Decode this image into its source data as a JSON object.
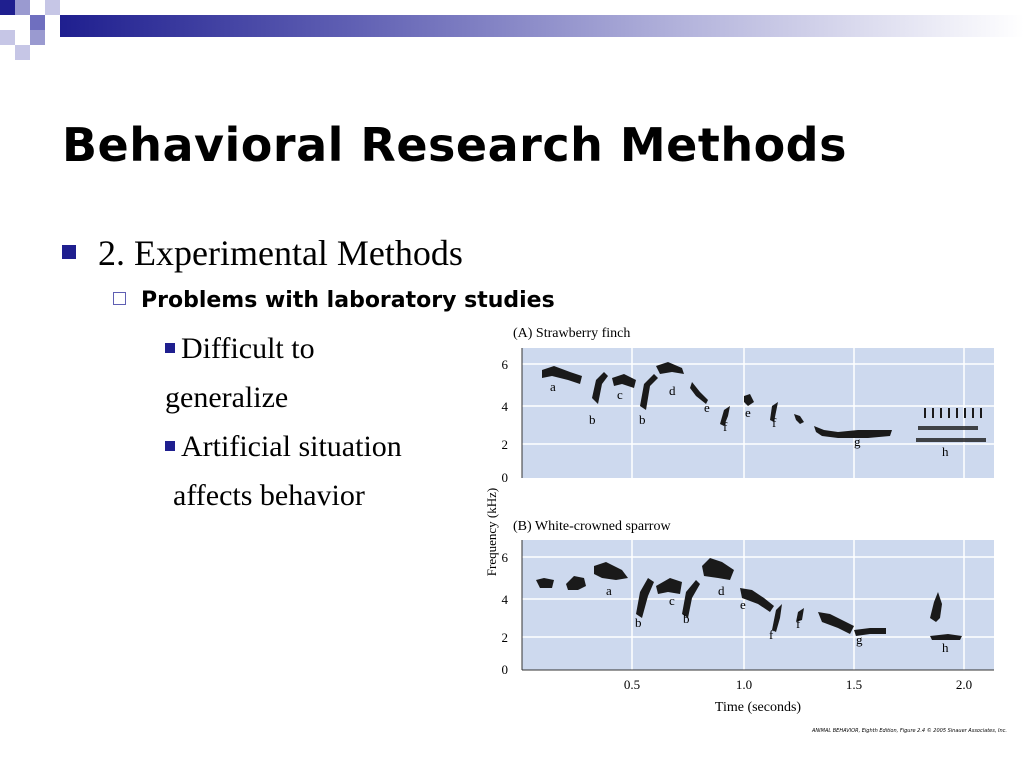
{
  "slide": {
    "title": "Behavioral Research Methods",
    "bullet1": "2. Experimental Methods",
    "subbullet": "Problems with laboratory studies",
    "point1_line1": "Difficult to",
    "point1_line2": "generalize",
    "point2_line1": "Artificial situation",
    "point2_line2": "affects behavior"
  },
  "figure": {
    "panel_a_title": "(A)  Strawberry finch",
    "panel_b_title": "(B)  White-crowned sparrow",
    "y_axis_label": "Frequency (kHz)",
    "x_axis_label": "Time (seconds)",
    "y_ticks": [
      "6",
      "4",
      "2",
      "0"
    ],
    "x_ticks": [
      "0.5",
      "1.0",
      "1.5",
      "2.0"
    ],
    "panel_a_labels": [
      "a",
      "b",
      "c",
      "b",
      "d",
      "e",
      "f",
      "e",
      "f",
      "g",
      "h"
    ],
    "panel_b_labels": [
      "a",
      "b",
      "c",
      "b",
      "d",
      "e",
      "f",
      "f",
      "g",
      "h"
    ],
    "credit": "ANIMAL BEHAVIOR, Eighth Edition, Figure 2.4 © 2005 Sinauer Associates, Inc."
  },
  "colors": {
    "accent": "#1f1f8f",
    "panel_bg": "#cdd9ee",
    "ink": "#1a1a1a"
  }
}
